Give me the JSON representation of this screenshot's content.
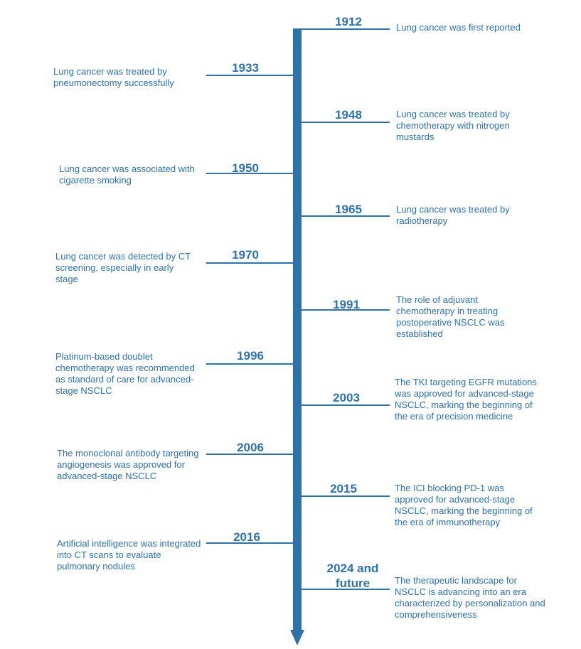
{
  "events": [
    {
      "year": "1912",
      "text": "Lung cancer was first reported"
    },
    {
      "year": "1933",
      "text": "Lung cancer was treated by pneumonectomy successfully"
    },
    {
      "year": "1948",
      "text": "Lung cancer was treated by chemotherapy with nitrogen mustards"
    },
    {
      "year": "1950",
      "text": "Lung cancer was associated with cigarette smoking"
    },
    {
      "year": "1965",
      "text": "Lung cancer was treated by radiotherapy"
    },
    {
      "year": "1970",
      "text": "Lung cancer was detected by CT screening, especially in early stage"
    },
    {
      "year": "1991",
      "text": "The role of adjuvant chemotherapy in treating postoperative NSCLC was established"
    },
    {
      "year": "1996",
      "text": "Platinum-based doublet chemotherapy was recommended as standard of care for advanced-stage NSCLC"
    },
    {
      "year": "2003",
      "text": "The TKI targeting EGFR mutations was approved for advanced-stage NSCLC, marking the beginning of the era of precision medicine"
    },
    {
      "year": "2006",
      "text": "The monoclonal antibody targeting angiogenesis was approved for advanced-stage NSCLC"
    },
    {
      "year": "2015",
      "text": "The ICI blocking PD-1 was approved for advanced-stage NSCLC, marking the beginning of the era of immunotherapy"
    },
    {
      "year": "2016",
      "text": "Artificial intelligence was integrated into CT scans to evaluate pulmonary nodules"
    },
    {
      "year": "2024 and future",
      "text": "The therapeutic landscape for NSCLC is advancing into an era characterized by personalization and comprehensiveness"
    }
  ],
  "colors": {
    "accent": "#2e72a8"
  }
}
